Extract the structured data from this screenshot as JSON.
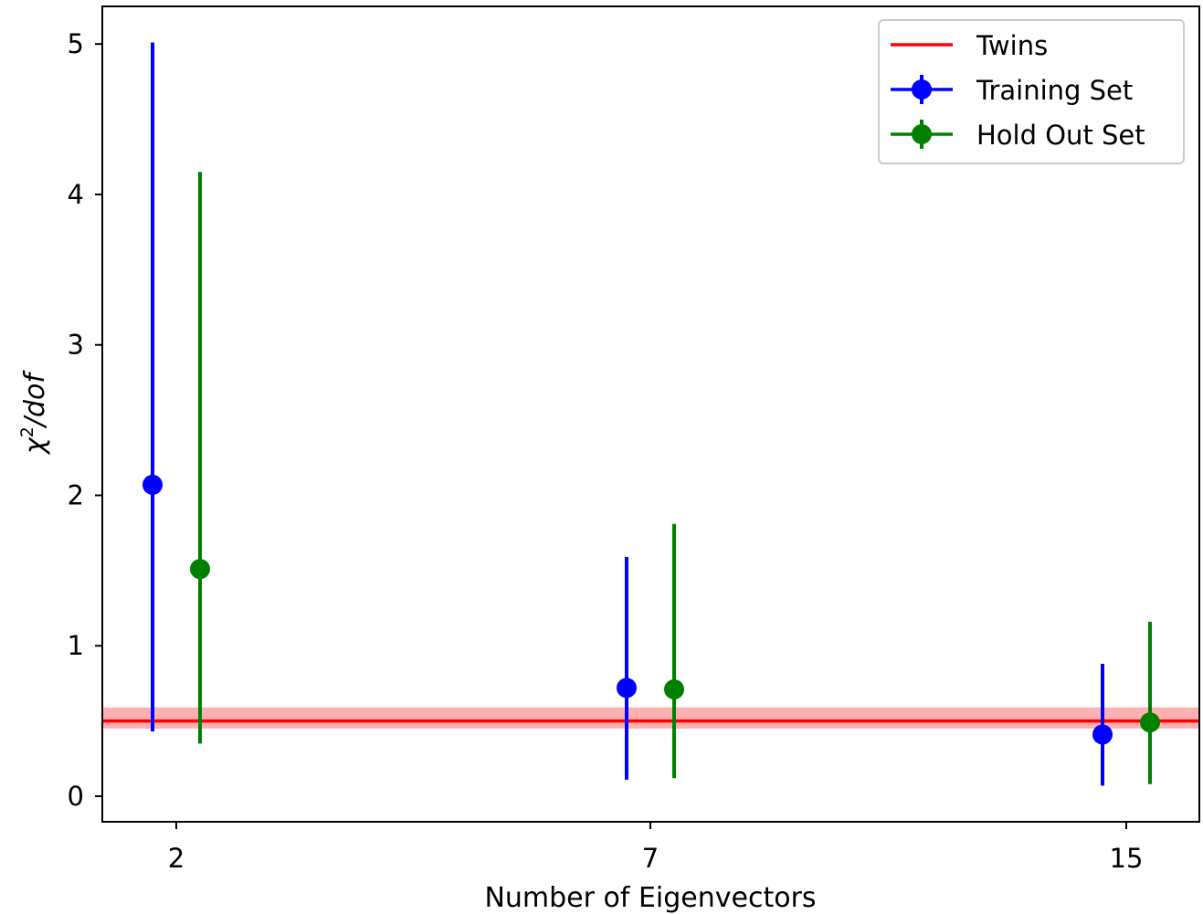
{
  "chart_data": {
    "type": "scatter",
    "xlabel": "Number of Eigenvectors",
    "ylabel_base": "χ",
    "ylabel_sup": "2",
    "ylabel_rest": "/dof",
    "categories": [
      "2",
      "7",
      "15"
    ],
    "yticks": [
      "0",
      "1",
      "2",
      "3",
      "4",
      "5"
    ],
    "ylim": [
      -0.17,
      5.25
    ],
    "grid": false,
    "legend_position": "top-right",
    "reference_line": {
      "name": "Twins",
      "value": 0.5,
      "band": [
        0.45,
        0.59
      ],
      "color": "#ff0000",
      "band_color": "#ffb0b0"
    },
    "series": [
      {
        "name": "Training Set",
        "color": "#0000ff",
        "values": [
          2.07,
          0.72,
          0.41
        ],
        "err_low": [
          0.43,
          0.11,
          0.07
        ],
        "err_high": [
          5.01,
          1.59,
          0.88
        ]
      },
      {
        "name": "Hold Out Set",
        "color": "#008000",
        "values": [
          1.51,
          0.71,
          0.49
        ],
        "err_low": [
          0.35,
          0.12,
          0.08
        ],
        "err_high": [
          4.15,
          1.81,
          1.16
        ]
      }
    ]
  }
}
